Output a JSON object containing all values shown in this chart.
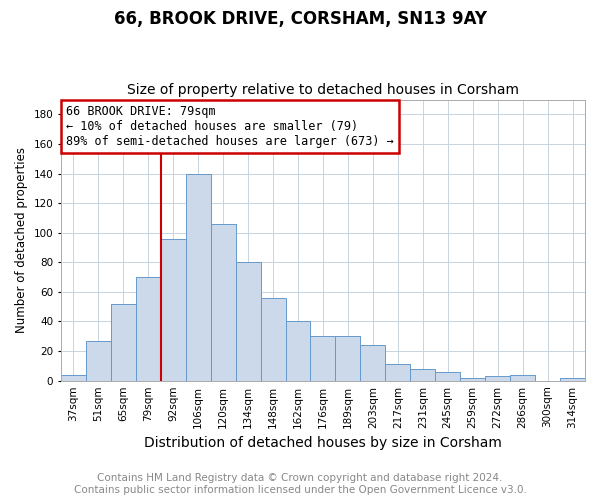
{
  "title": "66, BROOK DRIVE, CORSHAM, SN13 9AY",
  "subtitle": "Size of property relative to detached houses in Corsham",
  "xlabel": "Distribution of detached houses by size in Corsham",
  "ylabel": "Number of detached properties",
  "categories": [
    "37sqm",
    "51sqm",
    "65sqm",
    "79sqm",
    "92sqm",
    "106sqm",
    "120sqm",
    "134sqm",
    "148sqm",
    "162sqm",
    "176sqm",
    "189sqm",
    "203sqm",
    "217sqm",
    "231sqm",
    "245sqm",
    "259sqm",
    "272sqm",
    "286sqm",
    "300sqm",
    "314sqm"
  ],
  "values": [
    4,
    27,
    52,
    70,
    96,
    140,
    106,
    80,
    56,
    40,
    30,
    30,
    24,
    11,
    8,
    6,
    2,
    3,
    4,
    0,
    2
  ],
  "bar_color": "#ccd9ea",
  "bar_edge_color": "#6699cc",
  "grid_color": "#c8d4df",
  "annotation_text": "66 BROOK DRIVE: 79sqm\n← 10% of detached houses are smaller (79)\n89% of semi-detached houses are larger (673) →",
  "vline_x_index": 3,
  "vline_color": "#cc0000",
  "annotation_box_color": "#cc0000",
  "ylim": [
    0,
    190
  ],
  "yticks": [
    0,
    20,
    40,
    60,
    80,
    100,
    120,
    140,
    160,
    180
  ],
  "footer_text": "Contains HM Land Registry data © Crown copyright and database right 2024.\nContains public sector information licensed under the Open Government Licence v3.0.",
  "title_fontsize": 12,
  "subtitle_fontsize": 10,
  "xlabel_fontsize": 10,
  "ylabel_fontsize": 8.5,
  "footer_fontsize": 7.5,
  "tick_fontsize": 7.5
}
